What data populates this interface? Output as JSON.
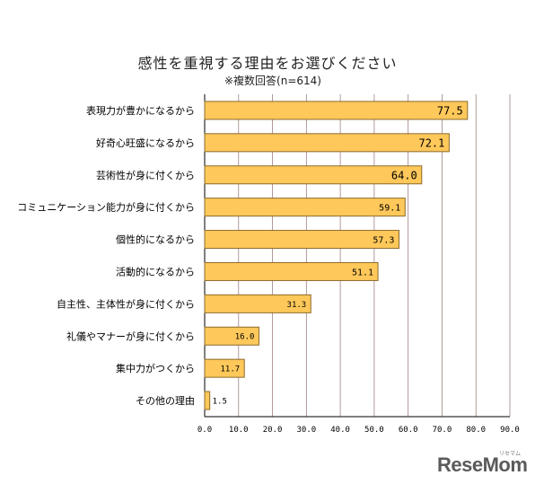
{
  "chart_data": {
    "type": "bar",
    "orientation": "horizontal",
    "title": "感性を重視する理由をお選びください",
    "subtitle": "※複数回答(n=614)",
    "categories": [
      "表現力が豊かになるから",
      "好奇心旺盛になるから",
      "芸術性が身に付くから",
      "コミュニケーション能力が身に付くから",
      "個性的になるから",
      "活動的になるから",
      "自主性、主体性が身に付くから",
      "礼儀やマナーが身に付くから",
      "集中力がつくから",
      "その他の理由"
    ],
    "values": [
      77.5,
      72.1,
      64.0,
      59.1,
      57.3,
      51.1,
      31.3,
      16.0,
      11.7,
      1.5
    ],
    "value_labels": [
      "77.5",
      "72.1",
      "64.0",
      "59.1",
      "57.3",
      "51.1",
      "31.3",
      "16.0",
      "11.7",
      "1.5"
    ],
    "xlim": [
      0,
      90
    ],
    "ticks": [
      "0.0",
      "10.0",
      "20.0",
      "30.0",
      "40.0",
      "50.0",
      "60.0",
      "70.0",
      "80.0",
      "90.0"
    ],
    "grid": true,
    "bar_color": "#FFC85A",
    "bar_border_color": "#8a6a2a",
    "grid_color": "#a08080"
  },
  "logo": {
    "text": "ReseMom",
    "sub": "リセマム"
  }
}
